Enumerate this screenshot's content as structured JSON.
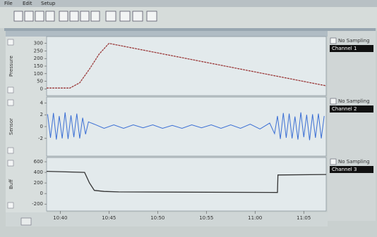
{
  "menu": [
    "File",
    "Edit",
    "Setup"
  ],
  "time_axis": {
    "xlim": [
      38.6,
      67.3
    ],
    "xticks": [
      {
        "value": 40,
        "label": "10:40"
      },
      {
        "value": 45,
        "label": "10:45"
      },
      {
        "value": 50,
        "label": "10:50"
      },
      {
        "value": 55,
        "label": "10:55"
      },
      {
        "value": 60,
        "label": "11:00"
      },
      {
        "value": 65,
        "label": "11:05"
      }
    ]
  },
  "channels": [
    {
      "label": "Pressure",
      "status": "No Sampling",
      "name": "Channel 1",
      "color": "#9b3b3b",
      "ylim": [
        -45,
        345
      ],
      "yticks": [
        300,
        250,
        200,
        150,
        100,
        50,
        0
      ],
      "x": [
        38.6,
        41,
        42,
        43,
        44,
        45,
        67.3
      ],
      "values": [
        5,
        5,
        40,
        130,
        230,
        300,
        20
      ]
    },
    {
      "label": "Sensor",
      "status": "No Sampling",
      "name": "Channel 2",
      "color": "#3b6fd4",
      "ylim": [
        -5,
        5
      ],
      "yticks": [
        4,
        2,
        0,
        -2
      ],
      "x": [
        38.7,
        39.0,
        39.3,
        39.6,
        39.9,
        40.2,
        40.5,
        40.8,
        41.1,
        41.4,
        41.7,
        42.0,
        42.3,
        42.6,
        42.9,
        43.5,
        44.5,
        45.5,
        46.5,
        47.5,
        48.5,
        49.5,
        50.5,
        51.5,
        52.5,
        53.5,
        54.5,
        55.5,
        56.5,
        57.5,
        58.5,
        59.5,
        60.5,
        61.5,
        62.0,
        62.3,
        62.6,
        62.9,
        63.2,
        63.5,
        63.8,
        64.1,
        64.4,
        64.7,
        65.0,
        65.3,
        65.6,
        65.9,
        66.2,
        66.5,
        66.8,
        67.1
      ],
      "values": [
        2.1,
        -1.9,
        2.3,
        -2.2,
        1.8,
        -2.0,
        2.4,
        -2.1,
        1.9,
        -1.8,
        2.2,
        -2.0,
        1.5,
        -1.3,
        0.8,
        0.4,
        -0.3,
        0.3,
        -0.3,
        0.3,
        -0.2,
        0.3,
        -0.3,
        0.2,
        -0.3,
        0.3,
        -0.2,
        0.3,
        -0.3,
        0.3,
        -0.3,
        0.4,
        -0.4,
        0.6,
        -1.2,
        1.8,
        -2.1,
        2.3,
        -1.9,
        2.2,
        -2.0,
        1.7,
        -2.2,
        2.4,
        -1.8,
        2.0,
        -2.3,
        2.1,
        -1.9,
        2.2,
        -2.0,
        1.8
      ]
    },
    {
      "label": "Buff",
      "status": "No Sampling",
      "name": "Channel 3",
      "color": "#333333",
      "ylim": [
        -330,
        680
      ],
      "yticks": [
        600,
        400,
        200,
        0,
        -200
      ],
      "x": [
        38.6,
        42.5,
        43.0,
        43.5,
        44.5,
        46.0,
        62.3,
        62.35,
        67.3
      ],
      "values": [
        420,
        400,
        200,
        60,
        40,
        30,
        20,
        350,
        360
      ]
    }
  ]
}
